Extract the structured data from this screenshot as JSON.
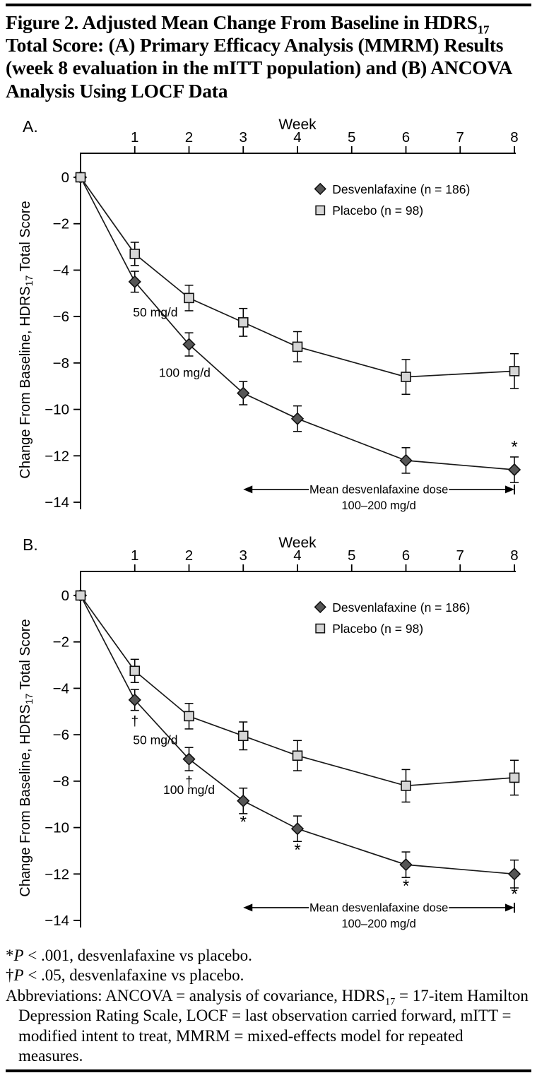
{
  "figure": {
    "title": {
      "pre": "Figure 2. Adjusted Mean Change From Baseline in HDRS",
      "sub": "17",
      "post": " Total Score: (A) Primary Efficacy Analysis (MMRM) Results (week 8 evaluation in the mITT population) and (B) ANCOVA Analysis Using LOCF Data"
    }
  },
  "colors": {
    "axis": "#000000",
    "line": "#1a1a1a",
    "text": "#000000",
    "marker_edge": "#111111",
    "desvenlafaxine_fill": "#565656",
    "placebo_fill": "#d6d6d6",
    "background": "#ffffff"
  },
  "chart_data": [
    {
      "type": "line",
      "panel_label": "A.",
      "xlabel": "Week",
      "ylabel": {
        "pre": "Change From Baseline, HDRS",
        "sub": "17",
        "post": " Total Score"
      },
      "xlim": [
        0,
        8
      ],
      "ylim": [
        0,
        -14
      ],
      "x_ticks": [
        1,
        2,
        3,
        4,
        5,
        6,
        7,
        8
      ],
      "y_ticks": [
        0,
        -2,
        -4,
        -6,
        -8,
        -10,
        -12,
        -14
      ],
      "grid": false,
      "legend": {
        "position": "top-right",
        "x": 4.42,
        "row_y": [
          -0.5,
          -1.42
        ]
      },
      "series": [
        {
          "name": "Desvenlafaxine (n = 186)",
          "marker": "diamond",
          "fill": "#565656",
          "x": [
            0,
            1,
            2,
            3,
            4,
            6,
            8
          ],
          "values": [
            0,
            -4.5,
            -7.2,
            -9.3,
            -10.4,
            -12.2,
            -12.6
          ],
          "errors": [
            0,
            0.45,
            0.5,
            0.5,
            0.55,
            0.55,
            0.55
          ]
        },
        {
          "name": "Placebo (n = 98)",
          "marker": "square",
          "fill": "#d6d6d6",
          "x": [
            0,
            1,
            2,
            3,
            4,
            6,
            8
          ],
          "values": [
            0,
            -3.3,
            -5.2,
            -6.25,
            -7.3,
            -8.6,
            -8.35
          ],
          "errors": [
            0,
            0.5,
            0.55,
            0.6,
            0.65,
            0.75,
            0.75
          ]
        }
      ],
      "dose_labels": [
        {
          "text": "50 mg/d",
          "x": 1.38,
          "y": -6.0
        },
        {
          "text": "100 mg/d",
          "x": 1.92,
          "y": -8.6
        }
      ],
      "sig_markers": [
        {
          "symbol": "*",
          "x": 8,
          "y": -11.85
        }
      ],
      "dose_arrow": {
        "x1": 3,
        "x2": 8,
        "y": -13.45,
        "line1": "Mean desvenlafaxine dose",
        "line2": "100–200 mg/d",
        "line2_y": -14.15
      }
    },
    {
      "type": "line",
      "panel_label": "B.",
      "xlabel": "Week",
      "ylabel": {
        "pre": "Change From Baseline, HDRS",
        "sub": "17",
        "post": " Total Score"
      },
      "xlim": [
        0,
        8
      ],
      "ylim": [
        0,
        -14
      ],
      "x_ticks": [
        1,
        2,
        3,
        4,
        5,
        6,
        7,
        8
      ],
      "y_ticks": [
        0,
        -2,
        -4,
        -6,
        -8,
        -10,
        -12,
        -14
      ],
      "grid": false,
      "legend": {
        "position": "top-right",
        "x": 4.42,
        "row_y": [
          -0.5,
          -1.42
        ]
      },
      "series": [
        {
          "name": "Desvenlafaxine (n = 186)",
          "marker": "diamond",
          "fill": "#565656",
          "x": [
            0,
            1,
            2,
            3,
            4,
            6,
            8
          ],
          "values": [
            0,
            -4.5,
            -7.05,
            -8.85,
            -10.05,
            -11.6,
            -12.0
          ],
          "errors": [
            0,
            0.45,
            0.5,
            0.55,
            0.55,
            0.55,
            0.6
          ]
        },
        {
          "name": "Placebo (n = 98)",
          "marker": "square",
          "fill": "#d6d6d6",
          "x": [
            0,
            1,
            2,
            3,
            4,
            6,
            8
          ],
          "values": [
            0,
            -3.25,
            -5.2,
            -6.05,
            -6.9,
            -8.2,
            -7.85
          ],
          "errors": [
            0,
            0.5,
            0.55,
            0.6,
            0.65,
            0.7,
            0.75
          ]
        }
      ],
      "dose_labels": [
        {
          "text": "50 mg/d",
          "x": 1.38,
          "y": -6.4
        },
        {
          "text": "100 mg/d",
          "x": 2.0,
          "y": -8.55
        }
      ],
      "sig_markers": [
        {
          "symbol": "†",
          "x": 1,
          "y": -5.6
        },
        {
          "symbol": "†",
          "x": 2,
          "y": -8.2
        },
        {
          "symbol": "*",
          "x": 3,
          "y": -10.0
        },
        {
          "symbol": "*",
          "x": 4,
          "y": -11.2
        },
        {
          "symbol": "*",
          "x": 6,
          "y": -12.75
        },
        {
          "symbol": "*",
          "x": 8,
          "y": -13.1
        }
      ],
      "dose_arrow": {
        "x1": 3,
        "x2": 8,
        "y": -13.45,
        "line1": "Mean desvenlafaxine dose",
        "line2": "100–200 mg/d",
        "line2_y": -14.15
      }
    }
  ],
  "footnotes": {
    "note1": {
      "marker": "*",
      "p": "P",
      "rest": " < .001, desvenlafaxine vs placebo."
    },
    "note2": {
      "marker": "†",
      "p": "P",
      "rest": " < .05, desvenlafaxine vs placebo."
    },
    "abbrev": {
      "pre": "Abbreviations: ANCOVA = analysis of covariance, HDRS",
      "sub": "17",
      "post": " = 17-item Hamilton Depression Rating Scale, LOCF = last observation carried forward, mITT = modified intent to treat, MMRM = mixed-effects model for repeated measures."
    }
  }
}
